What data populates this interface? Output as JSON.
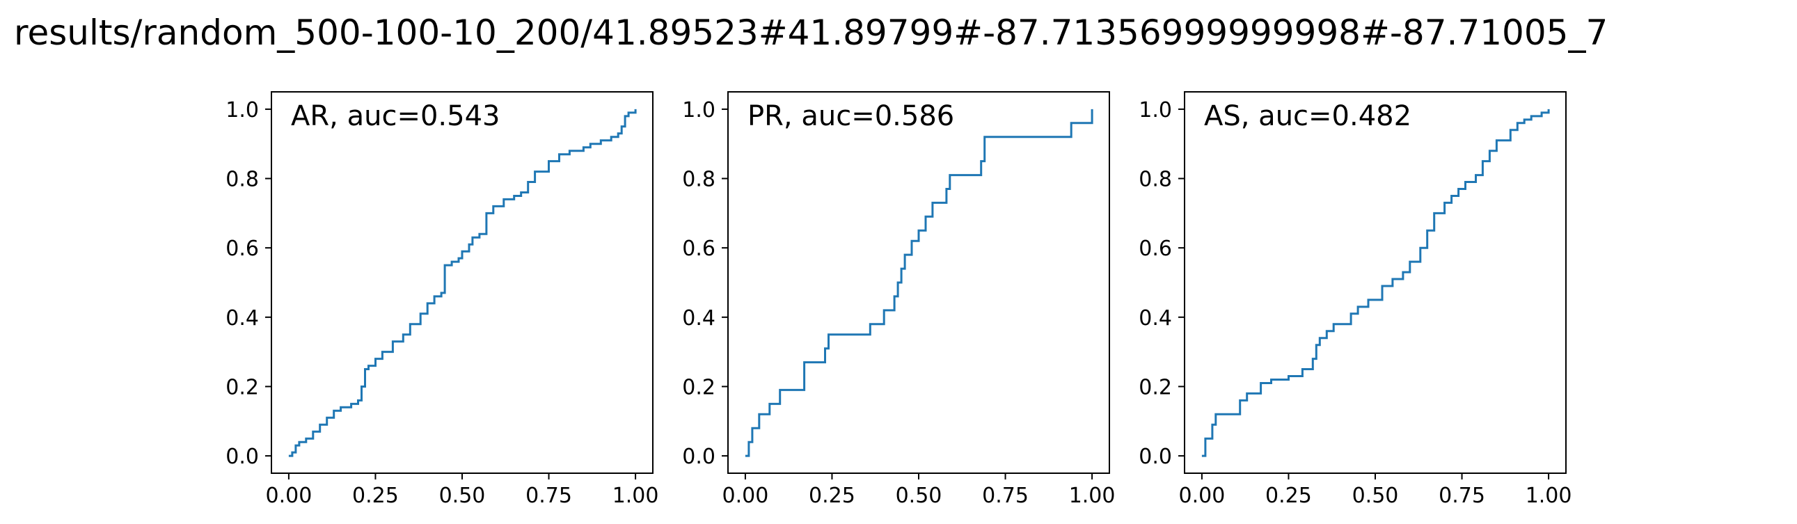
{
  "figure": {
    "title": "results/random_500-100-10_200/41.89523#41.89799#-87.71356999999998#-87.71005_7"
  },
  "style": {
    "line_color": "#1f77b4",
    "axis_color": "#000000"
  },
  "chart_data": [
    {
      "type": "line",
      "title": "AR, auc=0.543",
      "xlim": [
        -0.05,
        1.05
      ],
      "ylim": [
        -0.05,
        1.05
      ],
      "xticks": [
        "0.00",
        "0.25",
        "0.50",
        "0.75",
        "1.00"
      ],
      "yticks": [
        "0.0",
        "0.2",
        "0.4",
        "0.6",
        "0.8",
        "1.0"
      ],
      "xtick_values": [
        0,
        0.25,
        0.5,
        0.75,
        1.0
      ],
      "ytick_values": [
        0,
        0.2,
        0.4,
        0.6,
        0.8,
        1.0
      ],
      "grid": false,
      "step": true,
      "series": [
        {
          "x": [
            0.0,
            0.01,
            0.02,
            0.03,
            0.05,
            0.07,
            0.09,
            0.11,
            0.13,
            0.15,
            0.18,
            0.2,
            0.21,
            0.22,
            0.23,
            0.25,
            0.27,
            0.3,
            0.33,
            0.35,
            0.38,
            0.4,
            0.42,
            0.44,
            0.45,
            0.47,
            0.49,
            0.5,
            0.52,
            0.53,
            0.55,
            0.57,
            0.59,
            0.62,
            0.65,
            0.67,
            0.69,
            0.71,
            0.75,
            0.78,
            0.81,
            0.85,
            0.87,
            0.9,
            0.93,
            0.95,
            0.96,
            0.97,
            0.98,
            1.0
          ],
          "y": [
            0.0,
            0.01,
            0.03,
            0.04,
            0.05,
            0.07,
            0.09,
            0.11,
            0.13,
            0.14,
            0.15,
            0.16,
            0.2,
            0.25,
            0.26,
            0.28,
            0.3,
            0.33,
            0.35,
            0.38,
            0.41,
            0.44,
            0.46,
            0.47,
            0.55,
            0.56,
            0.57,
            0.59,
            0.61,
            0.63,
            0.64,
            0.7,
            0.72,
            0.74,
            0.75,
            0.76,
            0.79,
            0.82,
            0.85,
            0.87,
            0.88,
            0.89,
            0.9,
            0.91,
            0.92,
            0.93,
            0.95,
            0.98,
            0.99,
            1.0
          ]
        }
      ]
    },
    {
      "type": "line",
      "title": "PR, auc=0.586",
      "xlim": [
        -0.05,
        1.05
      ],
      "ylim": [
        -0.05,
        1.05
      ],
      "xticks": [
        "0.00",
        "0.25",
        "0.50",
        "0.75",
        "1.00"
      ],
      "yticks": [
        "0.0",
        "0.2",
        "0.4",
        "0.6",
        "0.8",
        "1.0"
      ],
      "xtick_values": [
        0,
        0.25,
        0.5,
        0.75,
        1.0
      ],
      "ytick_values": [
        0,
        0.2,
        0.4,
        0.6,
        0.8,
        1.0
      ],
      "grid": false,
      "step": true,
      "series": [
        {
          "x": [
            0.0,
            0.01,
            0.02,
            0.04,
            0.07,
            0.1,
            0.17,
            0.23,
            0.24,
            0.36,
            0.4,
            0.43,
            0.44,
            0.45,
            0.46,
            0.48,
            0.5,
            0.52,
            0.54,
            0.58,
            0.59,
            0.68,
            0.69,
            0.94,
            1.0
          ],
          "y": [
            0.0,
            0.04,
            0.08,
            0.12,
            0.15,
            0.19,
            0.27,
            0.31,
            0.35,
            0.38,
            0.42,
            0.46,
            0.5,
            0.54,
            0.58,
            0.62,
            0.65,
            0.69,
            0.73,
            0.77,
            0.81,
            0.85,
            0.92,
            0.96,
            1.0
          ]
        }
      ]
    },
    {
      "type": "line",
      "title": "AS, auc=0.482",
      "xlim": [
        -0.05,
        1.05
      ],
      "ylim": [
        -0.05,
        1.05
      ],
      "xticks": [
        "0.00",
        "0.25",
        "0.50",
        "0.75",
        "1.00"
      ],
      "yticks": [
        "0.0",
        "0.2",
        "0.4",
        "0.6",
        "0.8",
        "1.0"
      ],
      "xtick_values": [
        0,
        0.25,
        0.5,
        0.75,
        1.0
      ],
      "ytick_values": [
        0,
        0.2,
        0.4,
        0.6,
        0.8,
        1.0
      ],
      "grid": false,
      "step": true,
      "series": [
        {
          "x": [
            0.0,
            0.01,
            0.03,
            0.04,
            0.11,
            0.13,
            0.17,
            0.2,
            0.25,
            0.29,
            0.32,
            0.33,
            0.34,
            0.36,
            0.38,
            0.43,
            0.45,
            0.48,
            0.52,
            0.55,
            0.58,
            0.6,
            0.63,
            0.65,
            0.67,
            0.7,
            0.72,
            0.74,
            0.76,
            0.79,
            0.81,
            0.83,
            0.85,
            0.89,
            0.91,
            0.93,
            0.95,
            0.98,
            1.0
          ],
          "y": [
            0.0,
            0.05,
            0.09,
            0.12,
            0.16,
            0.18,
            0.21,
            0.22,
            0.23,
            0.25,
            0.28,
            0.32,
            0.34,
            0.36,
            0.38,
            0.41,
            0.43,
            0.45,
            0.49,
            0.51,
            0.53,
            0.56,
            0.6,
            0.65,
            0.7,
            0.73,
            0.75,
            0.77,
            0.79,
            0.81,
            0.85,
            0.88,
            0.91,
            0.94,
            0.96,
            0.97,
            0.98,
            0.99,
            1.0
          ]
        }
      ]
    }
  ]
}
